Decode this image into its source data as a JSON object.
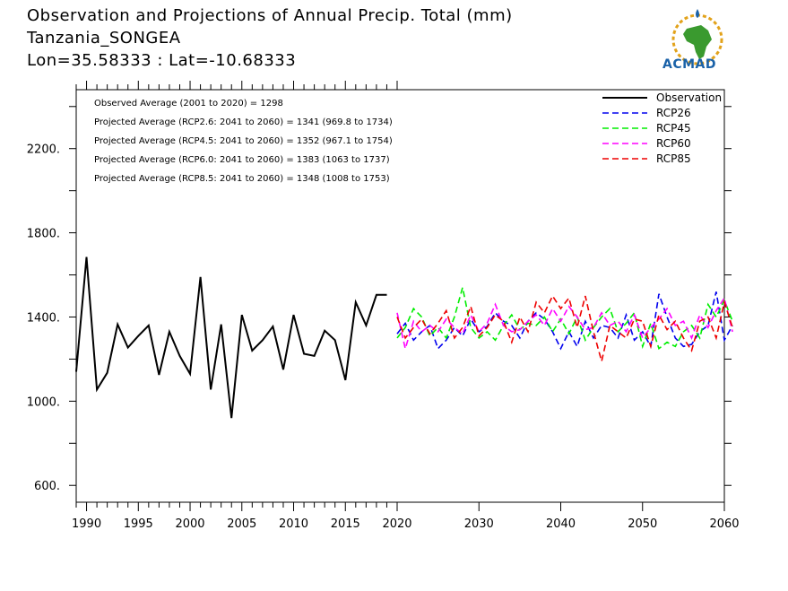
{
  "header": {
    "title": "Observation and Projections of Annual Precip. Total (mm)",
    "location": "Tanzania_SONGEA",
    "coords": "Lon=35.58333 : Lat=-10.68333"
  },
  "logo": {
    "text": "ACMAD",
    "icon": "africa-logo-icon"
  },
  "chart_data": {
    "type": "line",
    "title": "Observation and Projections of Annual Precip. Total (mm)",
    "xlabel": "",
    "ylabel": "",
    "xlim": [
      1989,
      2060
    ],
    "ylim": [
      520,
      2480
    ],
    "yticks": [
      600,
      1000,
      1400,
      1800,
      2200
    ],
    "ytick_labels": [
      "600.",
      "1000.",
      "1400.",
      "1800.",
      "2200."
    ],
    "xticks_left": [
      1990,
      1995,
      2000,
      2005,
      2010,
      2015,
      2020
    ],
    "xticks_right": [
      2030,
      2040,
      2050,
      2060
    ],
    "legend_position": "top-right",
    "annotations": [
      "Observed Average (2001 to 2020) = 1298",
      "Projected Average (RCP2.6: 2041 to 2060) = 1341 (969.8 to 1734)",
      "Projected Average (RCP4.5: 2041 to 2060) = 1352 (967.1 to 1754)",
      "Projected Average (RCP6.0: 2041 to 2060) = 1383 (1063 to 1737)",
      "Projected Average (RCP8.5: 2041 to 2060) = 1348 (1008 to 1753)"
    ],
    "observation": {
      "name": "Observation",
      "color": "#000000",
      "x": [
        1989,
        1990,
        1991,
        1992,
        1993,
        1994,
        1995,
        1996,
        1997,
        1998,
        1999,
        2000,
        2001,
        2002,
        2003,
        2004,
        2005,
        2006,
        2007,
        2008,
        2009,
        2010,
        2011,
        2012,
        2013,
        2014,
        2015,
        2016,
        2017,
        2018,
        2019
      ],
      "values": [
        1140,
        1685,
        1055,
        1135,
        1365,
        1255,
        1310,
        1360,
        1125,
        1330,
        1215,
        1130,
        1590,
        1055,
        1365,
        920,
        1410,
        1240,
        1290,
        1355,
        1150,
        1410,
        1225,
        1215,
        1335,
        1290,
        1100,
        1470,
        1360,
        1505,
        1505
      ]
    },
    "series": [
      {
        "name": "RCP26",
        "color": "#0000ee",
        "x_start": 2020,
        "values": [
          1320,
          1370,
          1290,
          1330,
          1360,
          1250,
          1290,
          1350,
          1310,
          1390,
          1330,
          1355,
          1420,
          1380,
          1360,
          1300,
          1380,
          1420,
          1390,
          1330,
          1250,
          1330,
          1260,
          1380,
          1300,
          1360,
          1350,
          1300,
          1410,
          1290,
          1330,
          1260,
          1510,
          1400,
          1300,
          1260,
          1270,
          1330,
          1360,
          1520,
          1290,
          1360
        ]
      },
      {
        "name": "RCP45",
        "color": "#00ee00",
        "x_start": 2020,
        "values": [
          1300,
          1350,
          1440,
          1400,
          1310,
          1350,
          1300,
          1400,
          1540,
          1350,
          1300,
          1330,
          1290,
          1360,
          1410,
          1340,
          1370,
          1360,
          1400,
          1330,
          1390,
          1320,
          1400,
          1290,
          1350,
          1400,
          1440,
          1330,
          1370,
          1420,
          1260,
          1370,
          1250,
          1280,
          1260,
          1330,
          1360,
          1300,
          1460,
          1400,
          1480,
          1380
        ]
      },
      {
        "name": "RCP60",
        "color": "#ff00ff",
        "x_start": 2020,
        "values": [
          1420,
          1250,
          1380,
          1330,
          1360,
          1330,
          1390,
          1350,
          1320,
          1410,
          1330,
          1370,
          1460,
          1360,
          1330,
          1340,
          1380,
          1410,
          1360,
          1440,
          1380,
          1450,
          1400,
          1340,
          1350,
          1420,
          1360,
          1380,
          1330,
          1410,
          1300,
          1350,
          1390,
          1440,
          1360,
          1380,
          1300,
          1410,
          1350,
          1430,
          1490,
          1330
        ]
      },
      {
        "name": "RCP85",
        "color": "#ee0000",
        "x_start": 2020,
        "values": [
          1400,
          1300,
          1350,
          1390,
          1320,
          1370,
          1430,
          1300,
          1350,
          1450,
          1310,
          1350,
          1410,
          1380,
          1280,
          1400,
          1330,
          1470,
          1420,
          1500,
          1440,
          1490,
          1350,
          1500,
          1330,
          1190,
          1360,
          1330,
          1300,
          1390,
          1380,
          1260,
          1410,
          1340,
          1380,
          1300,
          1240,
          1380,
          1400,
          1300,
          1470,
          1350
        ]
      }
    ]
  }
}
